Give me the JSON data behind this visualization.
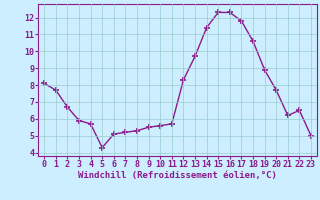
{
  "x": [
    0,
    1,
    2,
    3,
    4,
    5,
    6,
    7,
    8,
    9,
    10,
    11,
    12,
    13,
    14,
    15,
    16,
    17,
    18,
    19,
    20,
    21,
    22,
    23
  ],
  "y": [
    8.1,
    7.7,
    6.7,
    5.9,
    5.7,
    4.3,
    5.1,
    5.2,
    5.3,
    5.5,
    5.6,
    5.7,
    8.3,
    9.7,
    11.4,
    12.3,
    12.3,
    11.8,
    10.6,
    8.9,
    7.7,
    6.2,
    6.5,
    5.0
  ],
  "line_color": "#8b1a8b",
  "marker": "+",
  "marker_color": "#8b1a8b",
  "background_color": "#cceeff",
  "grid_color": "#99cccc",
  "xlabel": "Windchill (Refroidissement éolien,°C)",
  "xlabel_color": "#8b1a8b",
  "tick_color": "#8b1a8b",
  "xlim": [
    -0.5,
    23.5
  ],
  "ylim": [
    3.8,
    12.8
  ],
  "yticks": [
    4,
    5,
    6,
    7,
    8,
    9,
    10,
    11,
    12
  ],
  "xticks": [
    0,
    1,
    2,
    3,
    4,
    5,
    6,
    7,
    8,
    9,
    10,
    11,
    12,
    13,
    14,
    15,
    16,
    17,
    18,
    19,
    20,
    21,
    22,
    23
  ],
  "spine_color": "#8b1a8b",
  "line_width": 1.0,
  "marker_size": 5,
  "tick_fontsize": 6.0,
  "xlabel_fontsize": 6.5
}
